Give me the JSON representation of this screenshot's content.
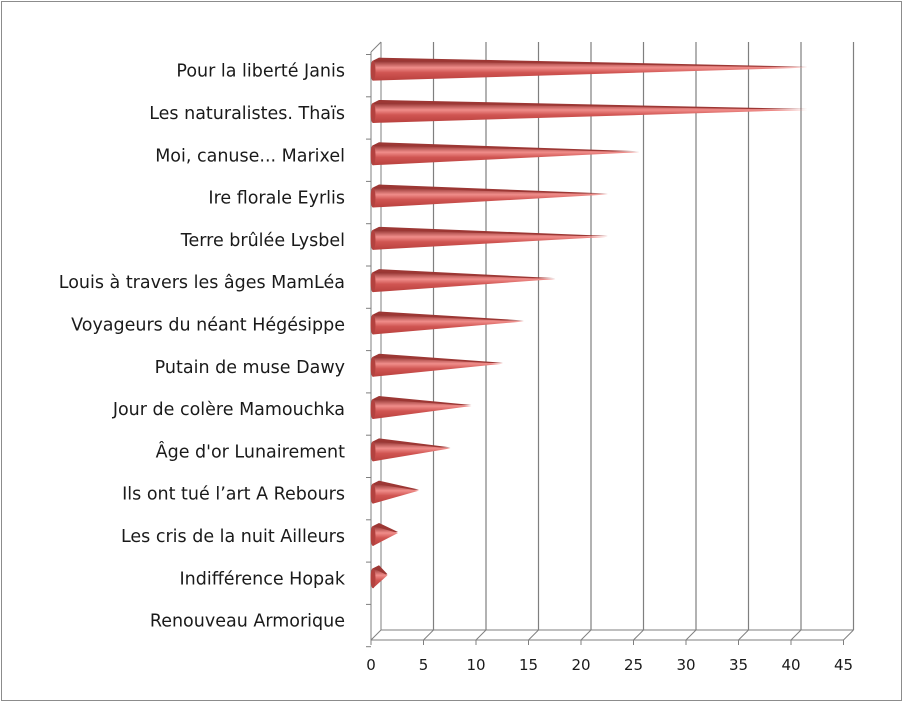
{
  "chart_data": {
    "type": "bar",
    "orientation": "horizontal",
    "style": "3d-cone",
    "categories": [
      "Pour la liberté Janis",
      "Les naturalistes. Thaïs",
      "Moi, canuse... Marixel",
      "Ire florale Eyrlis",
      "Terre brûlée Lysbel",
      "Louis à travers les âges MamLéa",
      "Voyageurs du néant  Hégésippe",
      "Putain de muse Dawy",
      "Jour de colère Mamouchka",
      "Âge d'or Lunairement",
      "Ils ont tué l’art   A Rebours",
      "Les cris de la nuit Ailleurs",
      "Indifférence Hopak",
      "Renouveau Armorique"
    ],
    "values": [
      41,
      41,
      25,
      22,
      22,
      17,
      14,
      12,
      9,
      7,
      4,
      2,
      1,
      0
    ],
    "xlim": [
      0,
      45
    ],
    "xticks": [
      "0",
      "5",
      "10",
      "15",
      "20",
      "25",
      "30",
      "35",
      "40",
      "45"
    ],
    "grid": true,
    "legend": "none",
    "bar_color": "#c0504d"
  }
}
